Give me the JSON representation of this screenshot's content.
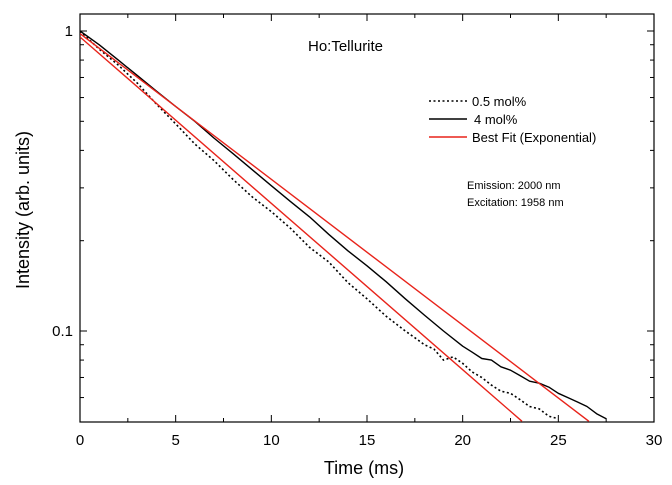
{
  "chart_data": {
    "type": "line",
    "title": "Ho:Tellurite",
    "xlabel": "Time (ms)",
    "ylabel": "Intensity (arb. units)",
    "xlim": [
      0,
      30
    ],
    "ylim": [
      0.05,
      1.1
    ],
    "y_scale": "log",
    "x_ticks": [
      0,
      5,
      10,
      15,
      20,
      25,
      30
    ],
    "x_tick_labels": [
      "0",
      "5",
      "10",
      "15",
      "20",
      "25",
      "30"
    ],
    "y_ticks": [
      1,
      0.1
    ],
    "y_tick_labels": [
      "1",
      "0.1"
    ],
    "legend_position": "top-right",
    "annotations": [
      "Emission: 2000 nm",
      "Excitation: 1958 nm"
    ],
    "series": [
      {
        "name": "0.5 mol%",
        "style": "dotted",
        "color": "#000000",
        "x": [
          0,
          1,
          2,
          3,
          4,
          5,
          6,
          7,
          8,
          9,
          10,
          11,
          12,
          13,
          14,
          15,
          16,
          17,
          17.5,
          18,
          18.5,
          19,
          19.5,
          20,
          20.5,
          21,
          21.5,
          22,
          22.5,
          23,
          23.5,
          24,
          24.5,
          25
        ],
        "y": [
          1.0,
          0.87,
          0.77,
          0.67,
          0.57,
          0.49,
          0.42,
          0.37,
          0.32,
          0.28,
          0.25,
          0.22,
          0.19,
          0.17,
          0.145,
          0.128,
          0.112,
          0.1,
          0.095,
          0.09,
          0.087,
          0.08,
          0.082,
          0.078,
          0.073,
          0.07,
          0.066,
          0.063,
          0.062,
          0.059,
          0.056,
          0.055,
          0.052,
          0.051
        ]
      },
      {
        "name": "4 mol%",
        "style": "solid",
        "color": "#000000",
        "x": [
          0,
          1,
          2,
          3,
          4,
          5,
          6,
          7,
          8,
          9,
          10,
          11,
          12,
          13,
          14,
          15,
          16,
          17,
          18,
          19,
          20,
          20.5,
          21,
          21.5,
          22,
          22.5,
          23,
          23.5,
          24,
          24.5,
          25,
          25.5,
          26,
          26.5,
          27,
          27.5
        ],
        "y": [
          1.0,
          0.9,
          0.8,
          0.71,
          0.63,
          0.56,
          0.5,
          0.44,
          0.39,
          0.345,
          0.305,
          0.27,
          0.24,
          0.21,
          0.185,
          0.165,
          0.146,
          0.128,
          0.113,
          0.1,
          0.089,
          0.085,
          0.081,
          0.08,
          0.076,
          0.074,
          0.071,
          0.068,
          0.067,
          0.065,
          0.062,
          0.06,
          0.058,
          0.056,
          0.053,
          0.051
        ]
      },
      {
        "name": "Best Fit (Exponential)",
        "style": "solid",
        "color": "#e8231a",
        "x": [
          0,
          23.1
        ],
        "y": [
          0.955,
          0.05
        ]
      },
      {
        "name": "",
        "style": "solid",
        "color": "#e8231a",
        "x": [
          0,
          26.6
        ],
        "y": [
          0.98,
          0.05
        ]
      }
    ]
  }
}
